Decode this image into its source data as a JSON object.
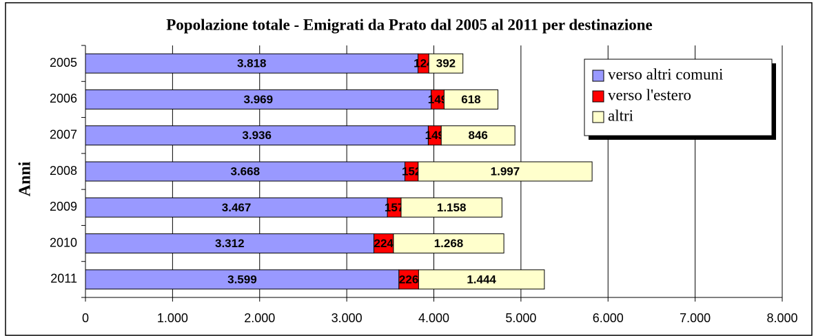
{
  "chart_data": {
    "type": "stacked-barh",
    "title": "Popolazione totale - Emigrati da Prato dal 2005 al 2011 per destinazione",
    "ylabel": "Anni",
    "categories": [
      "2005",
      "2006",
      "2007",
      "2008",
      "2009",
      "2010",
      "2011"
    ],
    "series": [
      {
        "name": "verso altri comuni",
        "color": "#9999ff",
        "values": [
          3818,
          3969,
          3936,
          3668,
          3467,
          3312,
          3599
        ],
        "value_labels": [
          "3.818",
          "3.969",
          "3.936",
          "3.668",
          "3.467",
          "3.312",
          "3.599"
        ]
      },
      {
        "name": "verso l'estero",
        "color": "#ff0000",
        "values": [
          124,
          149,
          149,
          152,
          157,
          224,
          226
        ]
      },
      {
        "name": "altri",
        "color": "#ffffcc",
        "values": [
          392,
          618,
          846,
          1997,
          1158,
          1268,
          1444
        ],
        "value_labels": [
          "392",
          "618",
          "846",
          "1.997",
          "1.158",
          "1.268",
          "1.444"
        ]
      }
    ],
    "xlim": [
      0,
      8000
    ],
    "xticks": [
      0,
      {
        "value": 1000,
        "label": "1.000"
      },
      {
        "value": 2000,
        "label": "2.000"
      },
      {
        "value": 3000,
        "label": "3.000"
      },
      {
        "value": 4000,
        "label": "4.000"
      },
      {
        "value": 5000,
        "label": "5.000"
      },
      {
        "value": 6000,
        "label": "6.000"
      },
      {
        "value": 7000,
        "label": "7.000"
      },
      {
        "value": 8000,
        "label": "8.000"
      }
    ],
    "grid": true,
    "legend": "upper right"
  }
}
